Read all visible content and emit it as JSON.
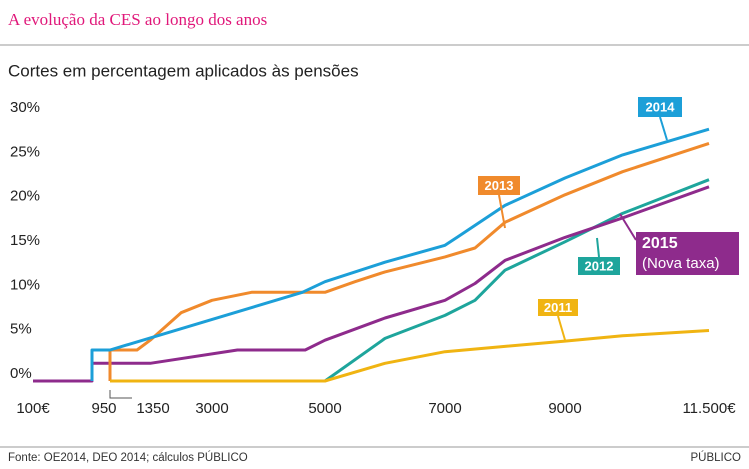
{
  "chart_data": {
    "type": "line",
    "title": "A evolução da CES ao longo dos anos",
    "subtitle": "Cortes em percentagem aplicados às pensões",
    "source": "Fonte: OE2014, DEO 2014; cálculos PÚBLICO",
    "credit": "PÚBLICO",
    "annotation": "(Nova taxa)",
    "xlim": [
      100,
      11500
    ],
    "xticks": [
      {
        "value": 100,
        "label": "100€"
      },
      950,
      1350,
      3000,
      5000,
      7000,
      9000,
      {
        "value": 11500,
        "label": "11.500€"
      }
    ],
    "ylim": [
      0,
      30
    ],
    "yticks": [
      {
        "value": 0,
        "label": "0%"
      },
      {
        "value": 5,
        "label": "5%"
      },
      {
        "value": 10,
        "label": "10%"
      },
      {
        "value": 15,
        "label": "15%"
      },
      {
        "value": 20,
        "label": "20%"
      },
      {
        "value": 25,
        "label": "25%"
      },
      {
        "value": 30,
        "label": "30%"
      }
    ],
    "series": [
      {
        "name": "2012",
        "color": "#1ea59c",
        "x": [
          5000,
          6000,
          7000,
          7500,
          8000,
          9000,
          10000,
          11500
        ],
        "values": [
          0,
          4.8,
          7.4,
          9.1,
          12.5,
          15.7,
          18.9,
          22.7
        ]
      },
      {
        "name": "2015",
        "color": "#8e2b8c",
        "x": [
          100,
          950,
          950,
          2000,
          3450,
          4650,
          5000,
          6000,
          7000,
          7500,
          8000,
          9000,
          10000,
          11500
        ],
        "values": [
          0,
          0,
          2,
          2,
          3.5,
          3.5,
          4.6,
          7.1,
          9.1,
          11,
          13.6,
          16.2,
          18.4,
          21.9
        ]
      },
      {
        "name": "2013",
        "color": "#f08a2c",
        "x": [
          1350,
          1350,
          1787,
          2000,
          2500,
          3000,
          3700,
          5000,
          5500,
          6000,
          7000,
          7500,
          8000,
          9000,
          10000,
          11500
        ],
        "values": [
          0,
          3.5,
          3.5,
          4.6,
          7.7,
          9.1,
          10,
          10,
          11.2,
          12.3,
          14,
          15,
          17.9,
          21,
          23.6,
          26.8
        ]
      },
      {
        "name": "2014",
        "color": "#1c9fd8",
        "x": [
          950,
          950,
          1350,
          4600,
          5000,
          6000,
          7000,
          7200,
          8000,
          9000,
          10000,
          11500
        ],
        "values": [
          0,
          3.5,
          3.5,
          10,
          11.2,
          13.4,
          15.3,
          16.2,
          19.8,
          22.9,
          25.5,
          28.4
        ]
      },
      {
        "name": "2011",
        "color": "#f0b412",
        "x": [
          1350,
          5000,
          6000,
          7000,
          8000,
          9000,
          10000,
          11500
        ],
        "values": [
          0,
          0,
          2,
          3.3,
          3.9,
          4.5,
          5.1,
          5.7
        ]
      }
    ]
  }
}
